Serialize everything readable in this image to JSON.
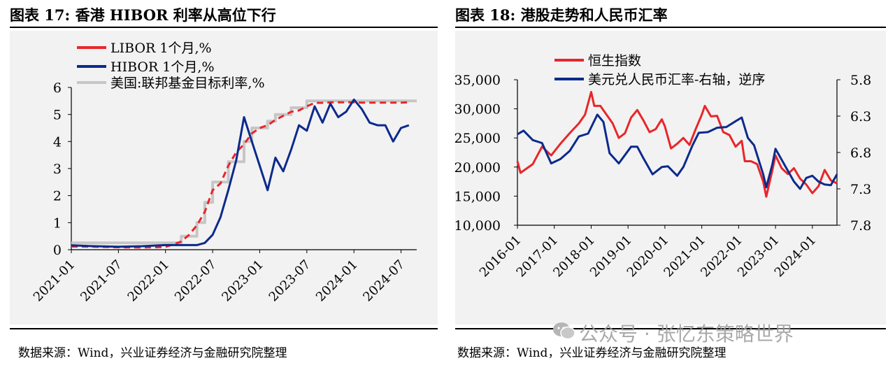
{
  "left_title": "图表 17:  香港 HIBOR 利率从高位下行",
  "right_title": "图表 18:  港股走势和人民币汇率",
  "left_source": "数据来源：Wind，兴业证券经济与金融研究院整理",
  "right_source": "数据来源：Wind，兴业证券经济与金融研究院整理",
  "watermark": "公众号 · 张忆东策略世界",
  "watermark_icon": "wechat-icon",
  "chart_data": [
    {
      "type": "line",
      "legend_position": "top-left",
      "ylim": [
        0,
        6
      ],
      "yticks": [
        "0",
        "1",
        "2",
        "3",
        "4",
        "5",
        "6"
      ],
      "xlim": [
        "2021-01",
        "2024-09"
      ],
      "xticks": [
        "2021-01",
        "2021-07",
        "2022-01",
        "2022-07",
        "2023-01",
        "2023-07",
        "2024-01",
        "2024-07"
      ],
      "series": [
        {
          "name": "LIBOR 1个月,%",
          "color": "#e8262a",
          "x": [
            "2021-01",
            "2021-04",
            "2021-07",
            "2021-10",
            "2022-01",
            "2022-03",
            "2022-04",
            "2022-05",
            "2022-06",
            "2022-07",
            "2022-08",
            "2022-09",
            "2022-10",
            "2022-11",
            "2022-12",
            "2023-01",
            "2023-02",
            "2023-03",
            "2023-04",
            "2023-05",
            "2023-06",
            "2023-07",
            "2023-08",
            "2023-09",
            "2023-10",
            "2023-11",
            "2023-12",
            "2024-01",
            "2024-02",
            "2024-03",
            "2024-04",
            "2024-05",
            "2024-06",
            "2024-07",
            "2024-08"
          ],
          "y": [
            0.12,
            0.11,
            0.09,
            0.08,
            0.1,
            0.3,
            0.55,
            0.9,
            1.4,
            2.2,
            2.45,
            3.1,
            3.6,
            3.9,
            4.3,
            4.5,
            4.6,
            4.8,
            4.95,
            5.1,
            5.15,
            5.3,
            5.43,
            5.43,
            5.45,
            5.45,
            5.45,
            5.45,
            5.44,
            5.44,
            5.44,
            5.44,
            5.44,
            5.44,
            5.45
          ]
        },
        {
          "name": "HIBOR 1个月,%",
          "color": "#0b2a8c",
          "x": [
            "2021-01",
            "2021-04",
            "2021-07",
            "2021-10",
            "2022-01",
            "2022-03",
            "2022-05",
            "2022-06",
            "2022-07",
            "2022-08",
            "2022-09",
            "2022-10",
            "2022-11",
            "2022-12",
            "2023-01",
            "2023-02",
            "2023-03",
            "2023-04",
            "2023-05",
            "2023-06",
            "2023-07",
            "2023-08",
            "2023-09",
            "2023-10",
            "2023-11",
            "2023-12",
            "2024-01",
            "2024-02",
            "2024-03",
            "2024-04",
            "2024-05",
            "2024-06",
            "2024-07",
            "2024-08"
          ],
          "y": [
            0.16,
            0.13,
            0.11,
            0.13,
            0.17,
            0.17,
            0.17,
            0.25,
            0.55,
            1.2,
            2.2,
            3.3,
            4.9,
            4.0,
            3.1,
            2.2,
            3.4,
            2.9,
            3.7,
            4.6,
            4.4,
            5.3,
            4.7,
            5.4,
            4.9,
            5.1,
            5.55,
            5.2,
            4.7,
            4.6,
            4.6,
            4.0,
            4.5,
            4.6
          ]
        },
        {
          "name": "美国:联邦基金目标利率,%",
          "color": "#c6c6c6",
          "x": [
            "2021-01",
            "2022-03",
            "2022-05",
            "2022-06",
            "2022-07",
            "2022-09",
            "2022-11",
            "2022-12",
            "2023-02",
            "2023-03",
            "2023-05",
            "2023-07",
            "2024-08"
          ],
          "y": [
            0.25,
            0.5,
            1.0,
            1.75,
            2.5,
            3.25,
            4.0,
            4.5,
            4.75,
            5.0,
            5.25,
            5.5,
            5.5
          ]
        }
      ]
    },
    {
      "type": "line",
      "legend_position": "top-left",
      "ylim": [
        10000,
        35000
      ],
      "yticks": [
        "10,000",
        "15,000",
        "20,000",
        "25,000",
        "30,000",
        "35,000"
      ],
      "y2_ticks": [
        "5.8",
        "6.3",
        "6.8",
        "7.3",
        "7.8"
      ],
      "y2_range": [
        5.8,
        7.8
      ],
      "y2_inverted": true,
      "xlim": [
        "2016-01",
        "2024-09"
      ],
      "xticks": [
        "2016-01",
        "2017-01",
        "2018-01",
        "2019-01",
        "2020-01",
        "2021-01",
        "2022-01",
        "2023-01",
        "2024-01"
      ],
      "series": [
        {
          "name": "恒生指数",
          "color": "#e8262a",
          "axis": "left",
          "x": [
            "2016-01",
            "2016-02",
            "2016-06",
            "2016-09",
            "2016-12",
            "2017-03",
            "2017-06",
            "2017-09",
            "2017-11",
            "2018-01",
            "2018-02",
            "2018-04",
            "2018-06",
            "2018-08",
            "2018-10",
            "2018-12",
            "2019-02",
            "2019-04",
            "2019-06",
            "2019-08",
            "2019-10",
            "2019-12",
            "2020-01",
            "2020-03",
            "2020-05",
            "2020-07",
            "2020-09",
            "2020-11",
            "2021-01",
            "2021-02",
            "2021-04",
            "2021-06",
            "2021-08",
            "2021-10",
            "2021-12",
            "2022-02",
            "2022-03",
            "2022-05",
            "2022-07",
            "2022-09",
            "2022-10",
            "2022-12",
            "2023-01",
            "2023-03",
            "2023-05",
            "2023-07",
            "2023-09",
            "2023-11",
            "2024-01",
            "2024-03",
            "2024-05",
            "2024-07",
            "2024-09"
          ],
          "y": [
            21000,
            19000,
            20500,
            23500,
            22000,
            24000,
            25800,
            27500,
            29000,
            32900,
            30500,
            30500,
            29000,
            27500,
            25000,
            25800,
            28500,
            29800,
            28000,
            26000,
            26500,
            28200,
            27000,
            23200,
            24000,
            25000,
            23800,
            26500,
            29000,
            30500,
            28700,
            28800,
            26000,
            25500,
            23500,
            24500,
            21000,
            21000,
            20500,
            17500,
            14900,
            19500,
            22000,
            19800,
            18800,
            19800,
            18000,
            17000,
            15500,
            16700,
            19500,
            17700,
            17200
          ]
        },
        {
          "name": "美元兑人民币汇率-右轴，逆序",
          "color": "#0b2a8c",
          "axis": "right",
          "x": [
            "2016-01",
            "2016-03",
            "2016-06",
            "2016-09",
            "2016-12",
            "2017-03",
            "2017-06",
            "2017-09",
            "2017-12",
            "2018-03",
            "2018-05",
            "2018-07",
            "2018-10",
            "2019-02",
            "2019-04",
            "2019-06",
            "2019-09",
            "2019-12",
            "2020-02",
            "2020-05",
            "2020-07",
            "2020-10",
            "2020-12",
            "2021-03",
            "2021-06",
            "2021-09",
            "2021-12",
            "2022-02",
            "2022-04",
            "2022-06",
            "2022-09",
            "2022-10",
            "2022-12",
            "2023-01",
            "2023-03",
            "2023-05",
            "2023-07",
            "2023-09",
            "2023-11",
            "2024-01",
            "2024-03",
            "2024-05",
            "2024-07",
            "2024-09"
          ],
          "y": [
            6.55,
            6.5,
            6.63,
            6.67,
            6.95,
            6.89,
            6.78,
            6.58,
            6.54,
            6.28,
            6.38,
            6.81,
            6.95,
            6.72,
            6.72,
            6.88,
            7.1,
            7.0,
            6.99,
            7.12,
            7.0,
            6.7,
            6.53,
            6.52,
            6.46,
            6.45,
            6.37,
            6.32,
            6.6,
            6.7,
            7.1,
            7.28,
            6.96,
            6.75,
            6.9,
            7.05,
            7.2,
            7.3,
            7.15,
            7.12,
            7.2,
            7.24,
            7.25,
            7.1
          ]
        }
      ]
    }
  ]
}
